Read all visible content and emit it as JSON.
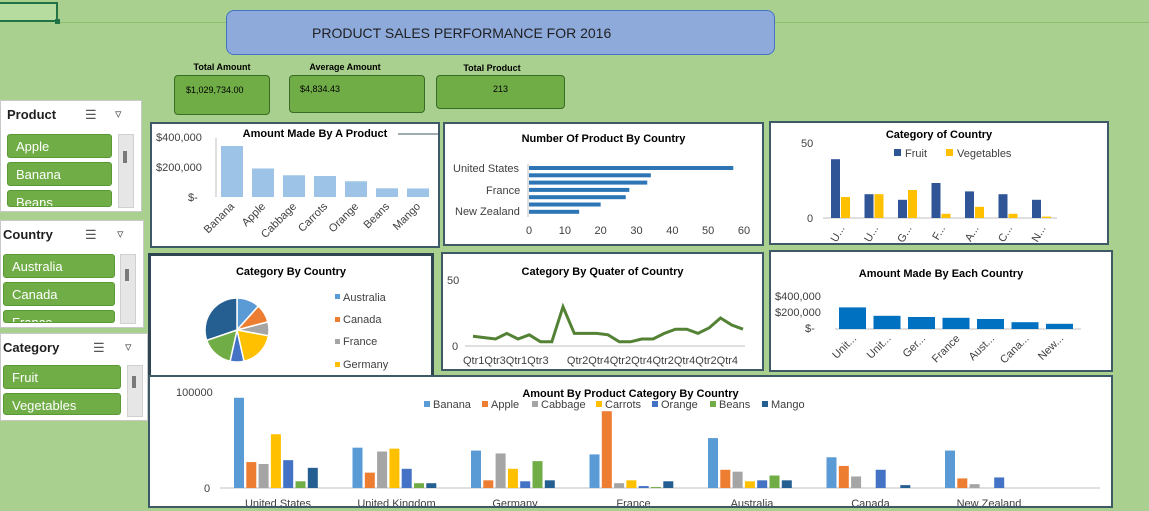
{
  "title": "PRODUCT SALES PERFORMANCE FOR 2016",
  "kpis": [
    {
      "label": "Total Amount",
      "value": "$1,029,734.00"
    },
    {
      "label": "Average Amount",
      "value": "$4,834.43"
    },
    {
      "label": "Total Product",
      "value": "213"
    }
  ],
  "slicers": {
    "product": {
      "header": "Product",
      "items": [
        "Apple",
        "Banana",
        "Beans"
      ]
    },
    "country": {
      "header": "Country",
      "items": [
        "Australia",
        "Canada",
        "France"
      ]
    },
    "category": {
      "header": "Category",
      "items": [
        "Fruit",
        "Vegetables"
      ]
    }
  },
  "colors": {
    "background": "#a9d08e",
    "accent_green": "#70ad47",
    "title_blue": "#8eaadb",
    "bar_light_blue": "#9dc3e6",
    "bar_blue": "#2e75b6"
  },
  "charts": {
    "amount_by_product": {
      "title": "Amount Made By A Product",
      "ytick_labels": [
        "$400,000",
        "$200,000",
        "$-"
      ],
      "chart_data": {
        "type": "bar",
        "categories": [
          "Banana",
          "Apple",
          "Cabbage",
          "Carrots",
          "Orange",
          "Beans",
          "Mango"
        ],
        "values": [
          340000,
          190000,
          145000,
          140000,
          105000,
          58000,
          57000
        ],
        "ylim": [
          0,
          400000
        ]
      }
    },
    "products_by_country": {
      "title": "Number Of Product By Country",
      "ylabels_shown": [
        "United States",
        "France",
        "New Zealand"
      ],
      "xticks": [
        "0",
        "10",
        "20",
        "30",
        "40",
        "50",
        "60"
      ],
      "chart_data": {
        "type": "bar",
        "orientation": "horizontal",
        "values": [
          57,
          34,
          33,
          28,
          27,
          20,
          14
        ],
        "xlim": [
          0,
          60
        ]
      }
    },
    "category_of_country": {
      "title": "Category of Country",
      "legend": [
        "Fruit",
        "Vegetables"
      ],
      "yticks": [
        "50",
        "0"
      ],
      "categories": [
        "U...",
        "U...",
        "G...",
        "F...",
        "A...",
        "C...",
        "N..."
      ],
      "chart_data": {
        "type": "bar",
        "categories": [
          "U...",
          "U...",
          "G...",
          "F...",
          "A...",
          "C...",
          "N..."
        ],
        "series": [
          {
            "name": "Fruit",
            "values": [
              42,
              17,
              13,
              25,
              19,
              17,
              13
            ]
          },
          {
            "name": "Vegetables",
            "values": [
              15,
              17,
              20,
              3,
              8,
              3,
              1
            ]
          }
        ],
        "ylim": [
          0,
          50
        ]
      }
    },
    "category_by_country": {
      "title": "Category By Country",
      "legend": [
        "Australia",
        "Canada",
        "France",
        "Germany"
      ],
      "chart_data": {
        "type": "pie",
        "values": [
          10,
          8,
          6,
          16,
          6,
          14,
          26
        ],
        "colors": [
          "#5b9bd5",
          "#ed7d31",
          "#a5a5a5",
          "#ffc000",
          "#4472c4",
          "#70ad47",
          "#255e91"
        ]
      }
    },
    "category_by_quarter": {
      "title": "Category By Quater of Country",
      "yticks": [
        "50",
        "0"
      ],
      "xtick_labels": "Qtr1Qtr3Qtr1Qtr3      Qtr2Qtr4Qtr2Qtr4Qtr2Qtr4Qtr2Qtr4",
      "chart_data": {
        "type": "line",
        "values": [
          7,
          6,
          5,
          9,
          5,
          8,
          3,
          3,
          28,
          9,
          9,
          9,
          8,
          3,
          3,
          5,
          5,
          9,
          12,
          12,
          9,
          13,
          20,
          15,
          12
        ],
        "ylim": [
          0,
          50
        ]
      }
    },
    "amount_by_country": {
      "title": "Amount Made By Each Country",
      "ytick_labels": [
        "$400,000",
        "$200,000",
        "$-"
      ],
      "categories": [
        "Unit...",
        "Unit...",
        "Ger...",
        "France",
        "Aust...",
        "Cana...",
        "New..."
      ],
      "chart_data": {
        "type": "bar",
        "categories": [
          "Unit...",
          "Unit...",
          "Ger...",
          "France",
          "Aust...",
          "Cana...",
          "New..."
        ],
        "values": [
          270000,
          165000,
          150000,
          140000,
          125000,
          85000,
          65000
        ],
        "ylim": [
          0,
          400000
        ]
      }
    },
    "amount_by_product_category": {
      "title": "Amount By Product Category By Country",
      "legend": [
        "Banana",
        "Apple",
        "Cabbage",
        "Carrots",
        "Orange",
        "Beans",
        "Mango"
      ],
      "yticks": [
        "100000",
        "0"
      ],
      "categories": [
        "United States",
        "United Kingdom",
        "Germany",
        "France",
        "Australia",
        "Canada",
        "New Zealand"
      ],
      "chart_data": {
        "type": "bar",
        "categories": [
          "United States",
          "United Kingdom",
          "Germany",
          "France",
          "Australia",
          "Canada",
          "New Zealand"
        ],
        "series": [
          {
            "name": "Banana",
            "values": [
              94000,
              42000,
              39000,
              35000,
              52000,
              32000,
              39000
            ]
          },
          {
            "name": "Apple",
            "values": [
              27000,
              16000,
              8000,
              80000,
              19000,
              23000,
              10000
            ]
          },
          {
            "name": "Cabbage",
            "values": [
              25000,
              38000,
              36000,
              5000,
              17000,
              12000,
              4000
            ]
          },
          {
            "name": "Carrots",
            "values": [
              56000,
              41000,
              20000,
              8000,
              7000,
              0,
              0
            ]
          },
          {
            "name": "Orange",
            "values": [
              29000,
              20000,
              7000,
              2000,
              8000,
              19000,
              11000
            ]
          },
          {
            "name": "Beans",
            "values": [
              7000,
              5000,
              28000,
              1000,
              13000,
              0,
              0
            ]
          },
          {
            "name": "Mango",
            "values": [
              21000,
              5000,
              8000,
              7000,
              8000,
              3000,
              0
            ]
          }
        ],
        "ylim": [
          0,
          100000
        ]
      }
    }
  }
}
